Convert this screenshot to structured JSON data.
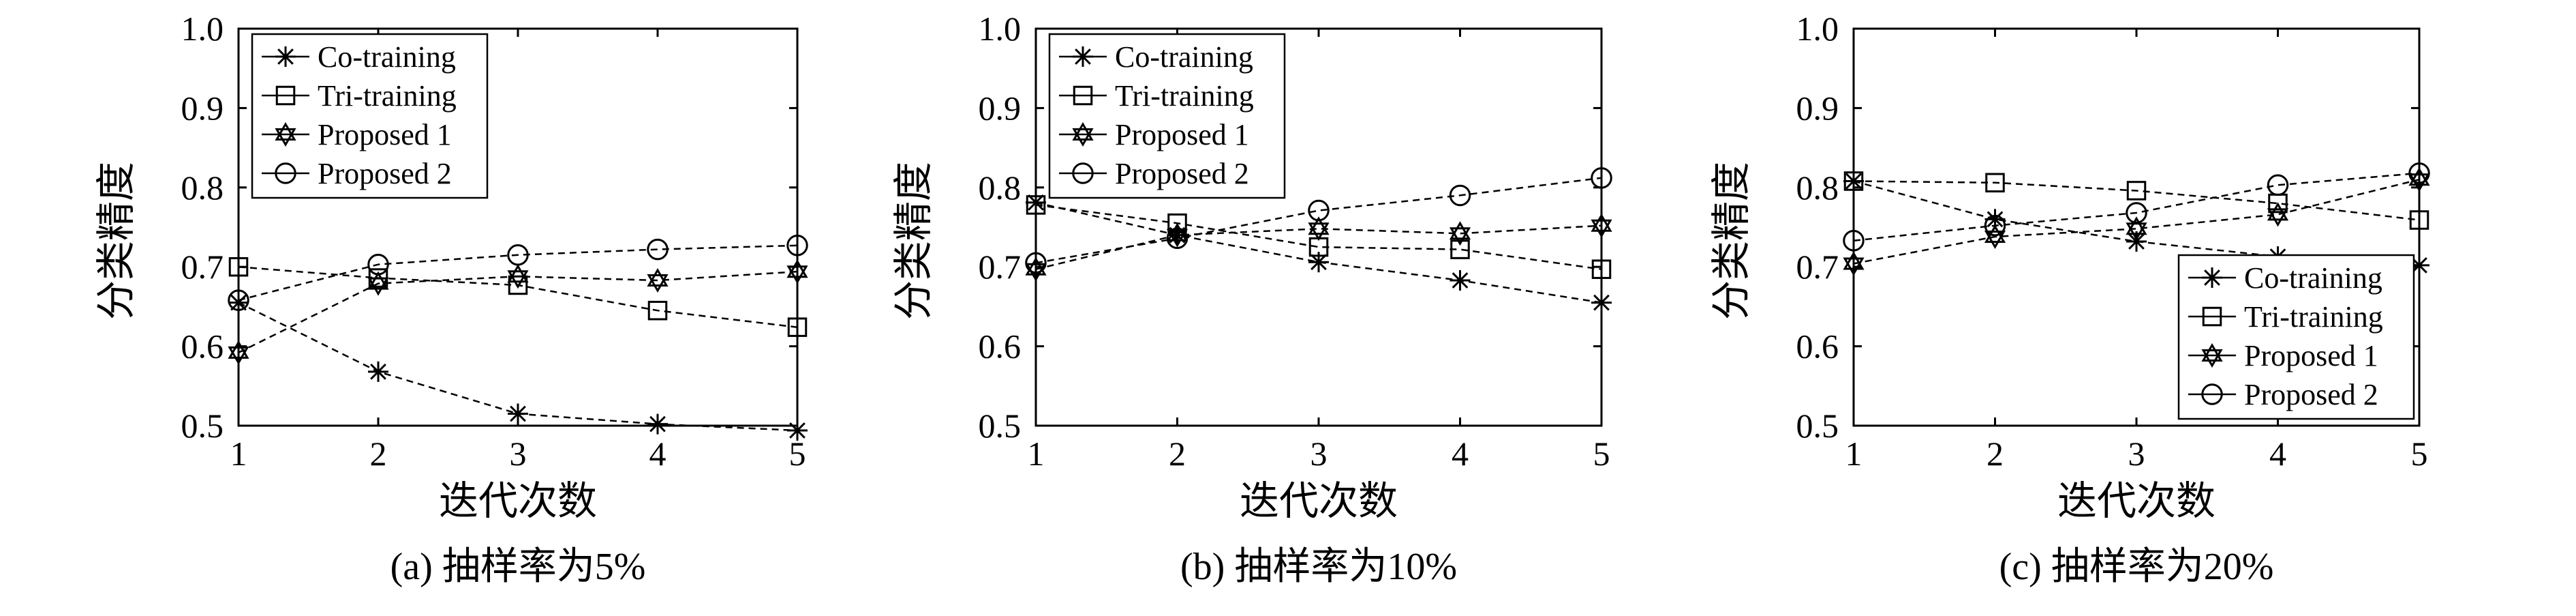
{
  "charts": [
    {
      "type": "line",
      "caption": "(a) 抽样率为5%",
      "xlabel": "迭代次数",
      "ylabel": "分类精度",
      "x": [
        1,
        2,
        3,
        4,
        5
      ],
      "xlim": [
        1,
        5
      ],
      "ylim": [
        0.5,
        1.0
      ],
      "xticks": [
        "1",
        "2",
        "3",
        "4",
        "5"
      ],
      "yticks": [
        "0.5",
        "0.6",
        "0.7",
        "0.8",
        "0.9",
        "1.0"
      ],
      "legend_position": "top-left",
      "series": [
        {
          "name": "Co-training",
          "marker": "asterisk",
          "values": [
            0.655,
            0.568,
            0.515,
            0.502,
            0.494
          ]
        },
        {
          "name": "Tri-training",
          "marker": "square",
          "values": [
            0.7,
            0.686,
            0.677,
            0.645,
            0.624
          ]
        },
        {
          "name": "Proposed 1",
          "marker": "hexagram",
          "values": [
            0.592,
            0.679,
            0.688,
            0.683,
            0.694
          ]
        },
        {
          "name": "Proposed 2",
          "marker": "circle",
          "values": [
            0.658,
            0.703,
            0.715,
            0.722,
            0.727
          ]
        }
      ]
    },
    {
      "type": "line",
      "caption": "(b) 抽样率为10%",
      "xlabel": "迭代次数",
      "ylabel": "分类精度",
      "x": [
        1,
        2,
        3,
        4,
        5
      ],
      "xlim": [
        1,
        5
      ],
      "ylim": [
        0.5,
        1.0
      ],
      "xticks": [
        "1",
        "2",
        "3",
        "4",
        "5"
      ],
      "yticks": [
        "0.5",
        "0.6",
        "0.7",
        "0.8",
        "0.9",
        "1.0"
      ],
      "legend_position": "top-left",
      "series": [
        {
          "name": "Co-training",
          "marker": "asterisk",
          "values": [
            0.781,
            0.74,
            0.706,
            0.683,
            0.655
          ]
        },
        {
          "name": "Tri-training",
          "marker": "square",
          "values": [
            0.778,
            0.755,
            0.725,
            0.722,
            0.697
          ]
        },
        {
          "name": "Proposed 1",
          "marker": "hexagram",
          "values": [
            0.697,
            0.74,
            0.748,
            0.742,
            0.752
          ]
        },
        {
          "name": "Proposed 2",
          "marker": "circle",
          "values": [
            0.705,
            0.736,
            0.771,
            0.79,
            0.812
          ]
        }
      ]
    },
    {
      "type": "line",
      "caption": "(c) 抽样率为20%",
      "xlabel": "迭代次数",
      "ylabel": "分类精度",
      "x": [
        1,
        2,
        3,
        4,
        5
      ],
      "xlim": [
        1,
        5
      ],
      "ylim": [
        0.5,
        1.0
      ],
      "xticks": [
        "1",
        "2",
        "3",
        "4",
        "5"
      ],
      "yticks": [
        "0.5",
        "0.6",
        "0.7",
        "0.8",
        "0.9",
        "1.0"
      ],
      "legend_position": "bottom-right",
      "series": [
        {
          "name": "Co-training",
          "marker": "asterisk",
          "values": [
            0.808,
            0.76,
            0.732,
            0.713,
            0.702
          ]
        },
        {
          "name": "Tri-training",
          "marker": "square",
          "values": [
            0.808,
            0.806,
            0.796,
            0.78,
            0.759
          ]
        },
        {
          "name": "Proposed 1",
          "marker": "hexagram",
          "values": [
            0.704,
            0.738,
            0.748,
            0.766,
            0.81
          ]
        },
        {
          "name": "Proposed 2",
          "marker": "circle",
          "values": [
            0.733,
            0.752,
            0.768,
            0.803,
            0.818
          ]
        }
      ]
    }
  ],
  "chart_data": [
    {
      "type": "line",
      "title": "(a) 抽样率为5%",
      "xlabel": "迭代次数",
      "ylabel": "分类精度",
      "x": [
        1,
        2,
        3,
        4,
        5
      ],
      "ylim": [
        0.5,
        1.0
      ],
      "series": [
        {
          "name": "Co-training",
          "values": [
            0.655,
            0.568,
            0.515,
            0.502,
            0.494
          ]
        },
        {
          "name": "Tri-training",
          "values": [
            0.7,
            0.686,
            0.677,
            0.645,
            0.624
          ]
        },
        {
          "name": "Proposed 1",
          "values": [
            0.592,
            0.679,
            0.688,
            0.683,
            0.694
          ]
        },
        {
          "name": "Proposed 2",
          "values": [
            0.658,
            0.703,
            0.715,
            0.722,
            0.727
          ]
        }
      ]
    },
    {
      "type": "line",
      "title": "(b) 抽样率为10%",
      "xlabel": "迭代次数",
      "ylabel": "分类精度",
      "x": [
        1,
        2,
        3,
        4,
        5
      ],
      "ylim": [
        0.5,
        1.0
      ],
      "series": [
        {
          "name": "Co-training",
          "values": [
            0.781,
            0.74,
            0.706,
            0.683,
            0.655
          ]
        },
        {
          "name": "Tri-training",
          "values": [
            0.778,
            0.755,
            0.725,
            0.722,
            0.697
          ]
        },
        {
          "name": "Proposed 1",
          "values": [
            0.697,
            0.74,
            0.748,
            0.742,
            0.752
          ]
        },
        {
          "name": "Proposed 2",
          "values": [
            0.705,
            0.736,
            0.771,
            0.79,
            0.812
          ]
        }
      ]
    },
    {
      "type": "line",
      "title": "(c) 抽样率为20%",
      "xlabel": "迭代次数",
      "ylabel": "分类精度",
      "x": [
        1,
        2,
        3,
        4,
        5
      ],
      "ylim": [
        0.5,
        1.0
      ],
      "series": [
        {
          "name": "Co-training",
          "values": [
            0.808,
            0.76,
            0.732,
            0.713,
            0.702
          ]
        },
        {
          "name": "Tri-training",
          "values": [
            0.808,
            0.806,
            0.796,
            0.78,
            0.759
          ]
        },
        {
          "name": "Proposed 1",
          "values": [
            0.704,
            0.738,
            0.748,
            0.766,
            0.81
          ]
        },
        {
          "name": "Proposed 2",
          "values": [
            0.733,
            0.752,
            0.768,
            0.803,
            0.818
          ]
        }
      ]
    }
  ]
}
